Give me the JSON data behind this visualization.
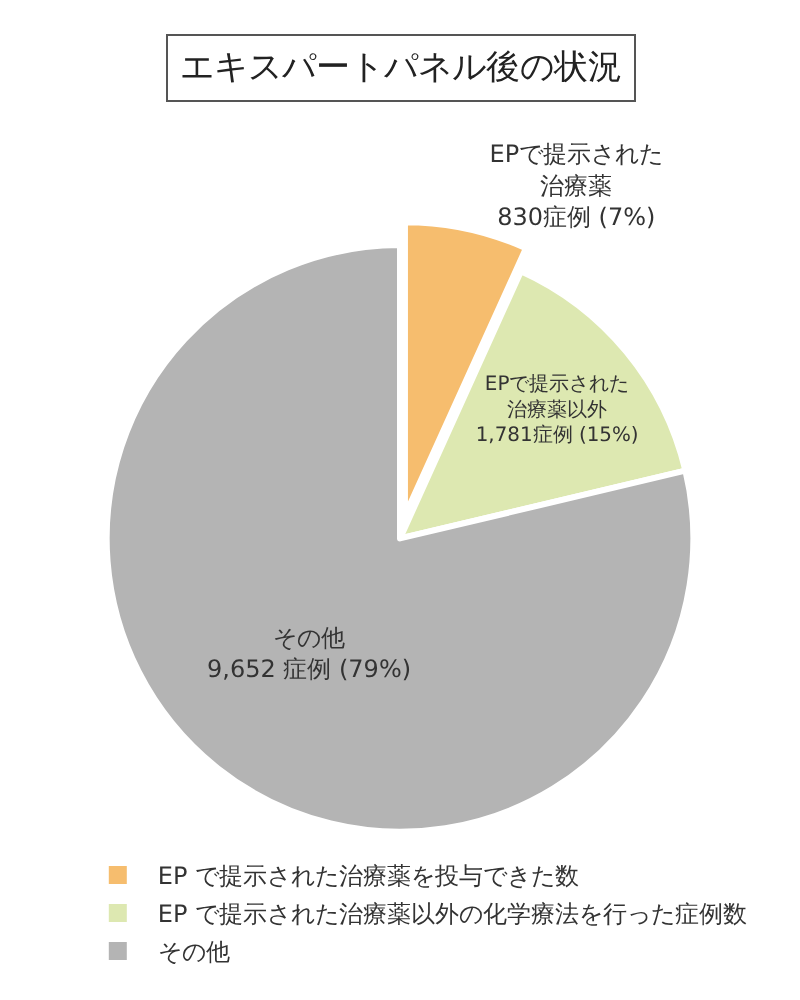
{
  "chart_data": {
    "type": "pie",
    "title": "エキスパートパネル後の状況",
    "categories": [
      "EP で提示された治療薬を投与できた数",
      "EP で提示された治療薬以外の化学療法を行った症例数",
      "その他"
    ],
    "values": [
      830,
      1781,
      9652
    ],
    "colors": [
      "#f6bd6e",
      "#dde8b1",
      "#b4b4b4"
    ],
    "value_labels": [
      "EPで提示された治療薬\n830症例 (7%)",
      "EPで提示された治療薬以外\n1,781症例 (15%)",
      "その他\n9,652 症例 (79%)"
    ],
    "legend": "bottom"
  }
}
